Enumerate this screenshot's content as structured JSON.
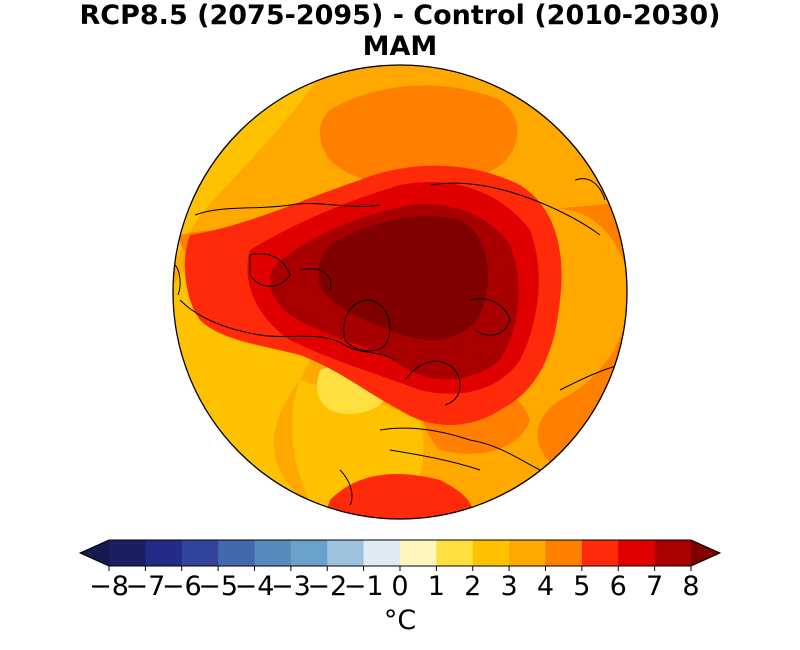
{
  "figure": {
    "title_line1": "RCP8.5 (2075-2095) - Control (2010-2030)",
    "title_line2": "MAM",
    "projection": "north polar stereographic",
    "variable_unit_label": "°C"
  },
  "colorbar": {
    "levels": [
      -8,
      -7,
      -6,
      -5,
      -4,
      -3,
      -2,
      -1,
      0,
      1,
      2,
      3,
      4,
      5,
      6,
      7,
      8
    ],
    "tick_labels": [
      "−8",
      "−7",
      "−6",
      "−5",
      "−4",
      "−3",
      "−2",
      "−1",
      "0",
      "1",
      "2",
      "3",
      "4",
      "5",
      "6",
      "7",
      "8"
    ],
    "colors": [
      "#1a1f63",
      "#232b87",
      "#33449c",
      "#4268ad",
      "#5889bd",
      "#6aa1cb",
      "#9cc2de",
      "#deebf2",
      "#fff5bf",
      "#ffe040",
      "#ffc200",
      "#ffa800",
      "#ff8000",
      "#ff2a0a",
      "#e00000",
      "#a80000"
    ],
    "under_color": "#141a50",
    "over_color": "#800000",
    "extend": "both"
  },
  "map_colors": {
    "lt2": "#ffe040",
    "2to3": "#ffc200",
    "3to4": "#ffa800",
    "4to5": "#ff8000",
    "5to6": "#ff2a0a",
    "6to7": "#e00000",
    "7to8": "#a80000",
    "gt8": "#800000",
    "coast": "#000000"
  }
}
